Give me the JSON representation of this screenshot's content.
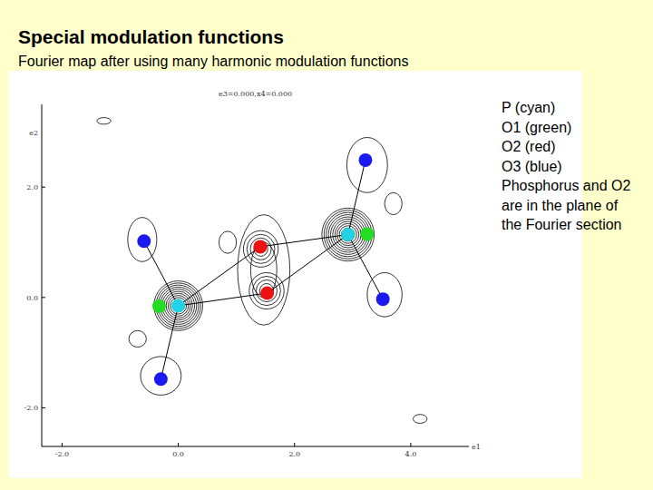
{
  "chart_data": {
    "type": "scatter",
    "title": "Special modulation functions",
    "subtitle": "Fourier map after using many harmonic modulation functions",
    "annotations": [
      "e3=0.000,x4=0.000",
      "Phosphorus and O2 are in the plane of the Fourier section"
    ],
    "x_label": "e1",
    "y_label": "e2",
    "xlim": [
      -2.35,
      5.0
    ],
    "ylim": [
      -2.7,
      3.5
    ],
    "xticks": [
      {
        "value": -2,
        "label": "-2.0"
      },
      {
        "value": 0,
        "label": "0.0"
      },
      {
        "value": 2,
        "label": "2.0"
      },
      {
        "value": 4,
        "label": "4.0"
      }
    ],
    "yticks": [
      {
        "value": -2,
        "label": "-2.0"
      },
      {
        "value": 0,
        "label": "0.0"
      },
      {
        "value": 2,
        "label": "2.0"
      }
    ],
    "legend": "right",
    "marker": "circle",
    "series": [
      {
        "name": "P (cyan)",
        "color": "#22d3e6",
        "x": [
          0.0,
          2.92
        ],
        "y": [
          -0.15,
          1.14
        ]
      },
      {
        "name": "O1 (green)",
        "color": "#22dd22",
        "x": [
          -0.33,
          3.25
        ],
        "y": [
          -0.16,
          1.15
        ]
      },
      {
        "name": "O2 (red)",
        "color": "#ee1111",
        "x": [
          1.41,
          1.53
        ],
        "y": [
          0.92,
          0.08
        ]
      },
      {
        "name": "O3 (blue)",
        "color": "#1a1aee",
        "x": [
          -0.59,
          -0.3,
          3.22,
          3.52
        ],
        "y": [
          1.02,
          -1.48,
          2.49,
          -0.03
        ]
      }
    ],
    "bonds": [
      [
        0,
        0,
        3,
        0
      ],
      [
        0,
        0,
        3,
        1
      ],
      [
        0,
        0,
        2,
        0
      ],
      [
        0,
        0,
        2,
        1
      ],
      [
        0,
        1,
        3,
        2
      ],
      [
        0,
        1,
        3,
        3
      ],
      [
        0,
        1,
        2,
        0
      ],
      [
        0,
        1,
        2,
        1
      ]
    ],
    "contours": [
      {
        "x": 0.0,
        "y": -0.15,
        "rx": 0.42,
        "ry": 0.45,
        "rings": 12
      },
      {
        "x": 2.92,
        "y": 1.14,
        "rx": 0.45,
        "ry": 0.48,
        "rings": 12
      },
      {
        "x": 1.42,
        "y": 0.88,
        "rx": 0.3,
        "ry": 0.33,
        "rings": 5
      },
      {
        "x": 1.52,
        "y": 0.12,
        "rx": 0.3,
        "ry": 0.33,
        "rings": 5
      },
      {
        "x": 1.47,
        "y": 0.5,
        "rx": 0.45,
        "ry": 1.0,
        "rings": 2
      },
      {
        "x": -0.62,
        "y": 1.05,
        "rx": 0.25,
        "ry": 0.4,
        "rings": 1
      },
      {
        "x": -0.3,
        "y": -1.42,
        "rx": 0.35,
        "ry": 0.35,
        "rings": 1
      },
      {
        "x": 3.25,
        "y": 2.4,
        "rx": 0.35,
        "ry": 0.5,
        "rings": 1
      },
      {
        "x": 3.55,
        "y": 0.05,
        "rx": 0.3,
        "ry": 0.4,
        "rings": 1
      },
      {
        "x": -1.28,
        "y": 3.2,
        "rx": 0.12,
        "ry": 0.06,
        "rings": 1
      },
      {
        "x": 4.16,
        "y": -2.2,
        "rx": 0.12,
        "ry": 0.08,
        "rings": 1
      },
      {
        "x": 3.7,
        "y": 1.7,
        "rx": 0.15,
        "ry": 0.2,
        "rings": 1
      },
      {
        "x": -0.7,
        "y": -0.75,
        "rx": 0.15,
        "ry": 0.15,
        "rings": 1
      },
      {
        "x": 0.85,
        "y": 1.0,
        "rx": 0.15,
        "ry": 0.2,
        "rings": 1
      }
    ]
  }
}
